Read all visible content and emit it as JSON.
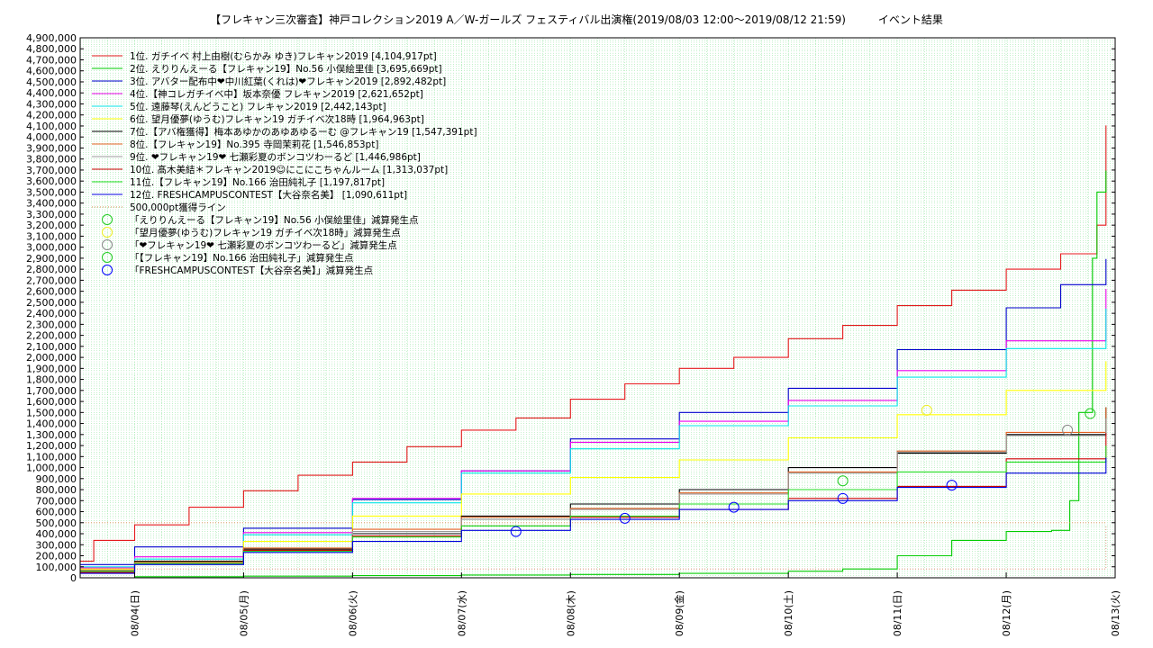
{
  "chart_data": {
    "type": "line",
    "title": "【フレキャン三次審査】神戸コレクション2019 A／W-ガールズ フェスティバル出演権(2019/08/03 12:00〜2019/08/12 21:59)　　　イベント結果",
    "xlabel": "",
    "ylabel": "",
    "x_range": [
      "2019-08-03 12:00",
      "2019-08-13 00:00"
    ],
    "ylim": [
      0,
      4900000
    ],
    "y_ticks": [
      0,
      100000,
      200000,
      300000,
      400000,
      500000,
      600000,
      700000,
      800000,
      900000,
      1000000,
      1100000,
      1200000,
      1300000,
      1400000,
      1500000,
      1600000,
      1700000,
      1800000,
      1900000,
      2000000,
      2100000,
      2200000,
      2300000,
      2400000,
      2500000,
      2600000,
      2700000,
      2800000,
      2900000,
      3000000,
      3100000,
      3200000,
      3300000,
      3400000,
      3500000,
      3600000,
      3700000,
      3800000,
      3900000,
      4000000,
      4100000,
      4200000,
      4300000,
      4400000,
      4500000,
      4600000,
      4700000,
      4800000,
      4900000
    ],
    "y_tick_labels": [
      "0",
      "100,000",
      "200,000",
      "300,000",
      "400,000",
      "500,000",
      "600,000",
      "700,000",
      "800,000",
      "900,000",
      "1,000,000",
      "1,100,000",
      "1,200,000",
      "1,300,000",
      "1,400,000",
      "1,500,000",
      "1,600,000",
      "1,700,000",
      "1,800,000",
      "1,900,000",
      "2,000,000",
      "2,100,000",
      "2,200,000",
      "2,300,000",
      "2,400,000",
      "2,500,000",
      "2,600,000",
      "2,700,000",
      "2,800,000",
      "2,900,000",
      "3,000,000",
      "3,100,000",
      "3,200,000",
      "3,300,000",
      "3,400,000",
      "3,500,000",
      "3,600,000",
      "3,700,000",
      "3,800,000",
      "3,900,000",
      "4,000,000",
      "4,100,000",
      "4,200,000",
      "4,300,000",
      "4,400,000",
      "4,500,000",
      "4,600,000",
      "4,700,000",
      "4,800,000",
      "4,900,000"
    ],
    "x_ticks": [
      {
        "x": "2019-08-04 00:00",
        "label": "08/04(日)"
      },
      {
        "x": "2019-08-05 00:00",
        "label": "08/05(月)"
      },
      {
        "x": "2019-08-06 00:00",
        "label": "08/06(火)"
      },
      {
        "x": "2019-08-07 00:00",
        "label": "08/07(水)"
      },
      {
        "x": "2019-08-08 00:00",
        "label": "08/08(木)"
      },
      {
        "x": "2019-08-09 00:00",
        "label": "08/09(金)"
      },
      {
        "x": "2019-08-10 00:00",
        "label": "08/10(土)"
      },
      {
        "x": "2019-08-11 00:00",
        "label": "08/11(日)"
      },
      {
        "x": "2019-08-12 00:00",
        "label": "08/12(月)"
      },
      {
        "x": "2019-08-13 00:00",
        "label": "08/13(火)"
      }
    ],
    "grid": true,
    "legend_position": "top-left",
    "series": [
      {
        "name": "1位. ガチイベ 村上由樹(むらかみ ゆき)フレキャン2019 [4,104,917pt]",
        "color": "#e41a1c",
        "x": [
          "2019-08-03 12:00",
          "2019-08-03 15:00",
          "2019-08-04 00:00",
          "2019-08-04 12:00",
          "2019-08-05 00:00",
          "2019-08-05 12:00",
          "2019-08-06 00:00",
          "2019-08-06 12:00",
          "2019-08-07 00:00",
          "2019-08-07 12:00",
          "2019-08-08 00:00",
          "2019-08-08 12:00",
          "2019-08-09 00:00",
          "2019-08-09 12:00",
          "2019-08-10 00:00",
          "2019-08-10 12:00",
          "2019-08-11 00:00",
          "2019-08-11 12:00",
          "2019-08-12 00:00",
          "2019-08-12 12:00",
          "2019-08-12 20:00",
          "2019-08-12 21:59"
        ],
        "y": [
          150000,
          340000,
          480000,
          640000,
          790000,
          930000,
          1050000,
          1190000,
          1340000,
          1450000,
          1620000,
          1760000,
          1900000,
          2000000,
          2170000,
          2290000,
          2470000,
          2610000,
          2800000,
          2940000,
          3200000,
          4104917
        ]
      },
      {
        "name": "2位. えりりんえーる【フレキャン19】No.56 小俣絵里佳 [3,695,669pt]",
        "color": "#00cc00",
        "x": [
          "2019-08-03 12:00",
          "2019-08-04 00:00",
          "2019-08-05 00:00",
          "2019-08-06 00:00",
          "2019-08-07 00:00",
          "2019-08-08 00:00",
          "2019-08-09 00:00",
          "2019-08-10 00:00",
          "2019-08-10 12:00",
          "2019-08-11 00:00",
          "2019-08-11 12:00",
          "2019-08-12 00:00",
          "2019-08-12 10:00",
          "2019-08-12 14:00",
          "2019-08-12 16:00",
          "2019-08-12 19:00",
          "2019-08-12 20:00",
          "2019-08-12 21:59"
        ],
        "y": [
          0,
          10000,
          15000,
          20000,
          25000,
          30000,
          40000,
          60000,
          80000,
          200000,
          340000,
          420000,
          430000,
          700000,
          1500000,
          2900000,
          3500000,
          3695669
        ]
      },
      {
        "name": "3位. アバター配布中❤中川紅葉(くれは)❤フレキャン2019 [2,892,482pt]",
        "color": "#0000cc",
        "x": [
          "2019-08-03 12:00",
          "2019-08-04 00:00",
          "2019-08-05 00:00",
          "2019-08-06 00:00",
          "2019-08-07 00:00",
          "2019-08-08 00:00",
          "2019-08-09 00:00",
          "2019-08-10 00:00",
          "2019-08-11 00:00",
          "2019-08-12 00:00",
          "2019-08-12 12:00",
          "2019-08-12 21:59"
        ],
        "y": [
          120000,
          280000,
          450000,
          710000,
          970000,
          1260000,
          1500000,
          1720000,
          2070000,
          2450000,
          2660000,
          2892482
        ]
      },
      {
        "name": "4位.【神コレガチイベ中】坂本奈優 フレキャン2019 [2,621,652pt]",
        "color": "#ee00ee",
        "x": [
          "2019-08-03 12:00",
          "2019-08-04 00:00",
          "2019-08-05 00:00",
          "2019-08-06 00:00",
          "2019-08-07 00:00",
          "2019-08-08 00:00",
          "2019-08-09 00:00",
          "2019-08-10 00:00",
          "2019-08-11 00:00",
          "2019-08-12 00:00",
          "2019-08-12 21:59"
        ],
        "y": [
          90000,
          190000,
          410000,
          720000,
          970000,
          1230000,
          1420000,
          1610000,
          1880000,
          2150000,
          2621652
        ]
      },
      {
        "name": "5位. 遠藤琴(えんどうこと) フレキャン2019 [2,442,143pt]",
        "color": "#00e5e5",
        "x": [
          "2019-08-03 12:00",
          "2019-08-04 00:00",
          "2019-08-05 00:00",
          "2019-08-06 00:00",
          "2019-08-07 00:00",
          "2019-08-08 00:00",
          "2019-08-09 00:00",
          "2019-08-10 00:00",
          "2019-08-11 00:00",
          "2019-08-12 00:00",
          "2019-08-12 21:59"
        ],
        "y": [
          100000,
          170000,
          390000,
          680000,
          950000,
          1170000,
          1380000,
          1560000,
          1820000,
          2080000,
          2442143
        ]
      },
      {
        "name": "6位. 望月優夢(ゆうむ)フレキャン19 ガチイベ次18時 [1,964,963pt]",
        "color": "#ffff00",
        "x": [
          "2019-08-03 12:00",
          "2019-08-04 00:00",
          "2019-08-05 00:00",
          "2019-08-06 00:00",
          "2019-08-07 00:00",
          "2019-08-08 00:00",
          "2019-08-09 00:00",
          "2019-08-10 00:00",
          "2019-08-11 00:00",
          "2019-08-12 00:00",
          "2019-08-12 21:59"
        ],
        "y": [
          80000,
          150000,
          330000,
          560000,
          760000,
          910000,
          1070000,
          1270000,
          1480000,
          1700000,
          1964963
        ]
      },
      {
        "name": "7位.【アバ権獲得】梅本あゆかのあゆあゆるーむ @フレキャン19 [1,547,391pt]",
        "color": "#000000",
        "x": [
          "2019-08-03 12:00",
          "2019-08-04 00:00",
          "2019-08-05 00:00",
          "2019-08-06 00:00",
          "2019-08-07 00:00",
          "2019-08-08 00:00",
          "2019-08-09 00:00",
          "2019-08-10 00:00",
          "2019-08-11 00:00",
          "2019-08-12 00:00",
          "2019-08-12 21:59"
        ],
        "y": [
          60000,
          150000,
          260000,
          400000,
          560000,
          670000,
          800000,
          1000000,
          1130000,
          1300000,
          1547391
        ]
      },
      {
        "name": "8位.【フレキャン19】No.395 寺岡茉莉花 [1,546,853pt]",
        "color": "#e06020",
        "x": [
          "2019-08-03 12:00",
          "2019-08-04 00:00",
          "2019-08-05 00:00",
          "2019-08-06 00:00",
          "2019-08-07 00:00",
          "2019-08-08 00:00",
          "2019-08-09 00:00",
          "2019-08-10 00:00",
          "2019-08-11 00:00",
          "2019-08-12 00:00",
          "2019-08-12 21:59"
        ],
        "y": [
          70000,
          140000,
          270000,
          440000,
          550000,
          630000,
          770000,
          960000,
          1150000,
          1320000,
          1546853
        ]
      },
      {
        "name": "9位. ❤フレキャン19❤ 七瀬彩夏のボンコツわーるど [1,446,986pt]",
        "color": "#999999",
        "x": [
          "2019-08-03 12:00",
          "2019-08-04 00:00",
          "2019-08-05 00:00",
          "2019-08-06 00:00",
          "2019-08-07 00:00",
          "2019-08-08 00:00",
          "2019-08-09 00:00",
          "2019-08-10 00:00",
          "2019-08-11 00:00",
          "2019-08-12 00:00",
          "2019-08-12 21:59"
        ],
        "y": [
          65000,
          130000,
          250000,
          420000,
          530000,
          620000,
          760000,
          950000,
          1140000,
          1290000,
          1446986
        ]
      },
      {
        "name": "10位. 髙木美結＊フレキャン2019☺にこにこちゃんルーム [1,313,037pt]",
        "color": "#cc0000",
        "x": [
          "2019-08-03 12:00",
          "2019-08-04 00:00",
          "2019-08-05 00:00",
          "2019-08-06 00:00",
          "2019-08-07 00:00",
          "2019-08-08 00:00",
          "2019-08-09 00:00",
          "2019-08-10 00:00",
          "2019-08-11 00:00",
          "2019-08-12 00:00",
          "2019-08-12 21:59"
        ],
        "y": [
          50000,
          130000,
          250000,
          380000,
          470000,
          550000,
          620000,
          720000,
          830000,
          1080000,
          1313037
        ]
      },
      {
        "name": "11位.【フレキャン19】No.166 治田純礼子 [1,197,817pt]",
        "color": "#22dd22",
        "x": [
          "2019-08-03 12:00",
          "2019-08-04 00:00",
          "2019-08-05 00:00",
          "2019-08-06 00:00",
          "2019-08-07 00:00",
          "2019-08-08 00:00",
          "2019-08-09 00:00",
          "2019-08-10 00:00",
          "2019-08-11 00:00",
          "2019-08-12 00:00",
          "2019-08-12 21:59"
        ],
        "y": [
          60000,
          130000,
          240000,
          370000,
          470000,
          560000,
          670000,
          800000,
          960000,
          1050000,
          1197817
        ]
      },
      {
        "name": "12位. FRESHCAMPUSCONTEST【大谷奈名美】 [1,090,611pt]",
        "color": "#0000dd",
        "x": [
          "2019-08-03 12:00",
          "2019-08-04 00:00",
          "2019-08-05 00:00",
          "2019-08-06 00:00",
          "2019-08-07 00:00",
          "2019-08-08 00:00",
          "2019-08-09 00:00",
          "2019-08-10 00:00",
          "2019-08-11 00:00",
          "2019-08-12 00:00",
          "2019-08-12 21:59"
        ],
        "y": [
          40000,
          120000,
          230000,
          330000,
          430000,
          530000,
          620000,
          700000,
          820000,
          950000,
          1090611
        ]
      },
      {
        "name": "500,000pt獲得ライン",
        "color": "#cc8844",
        "dash": true,
        "x": [
          "2019-08-03 12:00",
          "2019-08-12 21:59"
        ],
        "y": [
          500000,
          500000
        ]
      }
    ],
    "hidden_trend": {
      "color": "#d08060",
      "x": [
        "2019-08-03 12:00",
        "2019-08-12 21:59"
      ],
      "y": [
        80000,
        480000
      ]
    },
    "markers": [
      {
        "name": "「えりりんえーる【フレキャン19】No.56 小俣絵里佳」減算発生点",
        "color": "#22cc22",
        "points": [
          {
            "x": "2019-08-12 18:30",
            "y": 1490000
          }
        ]
      },
      {
        "name": "「望月優夢(ゆうむ)フレキャン19 ガチイベ次18時」減算発生点",
        "color": "#eeee22",
        "points": [
          {
            "x": "2019-08-11 06:30",
            "y": 1520000
          }
        ]
      },
      {
        "name": "「❤フレキャン19❤ 七瀬彩夏のボンコツわーるど」減算発生点",
        "color": "#888888",
        "points": [
          {
            "x": "2019-08-12 13:30",
            "y": 1340000
          }
        ]
      },
      {
        "name": "「【フレキャン19】No.166 治田純礼子」減算発生点",
        "color": "#22cc22",
        "points": [
          {
            "x": "2019-08-10 12:00",
            "y": 880000
          }
        ]
      },
      {
        "name": "「FRESHCAMPUSCONTEST【大谷奈名美】」減算発生点",
        "color": "#0000ff",
        "points": [
          {
            "x": "2019-08-07 12:00",
            "y": 420000
          },
          {
            "x": "2019-08-08 12:00",
            "y": 540000
          },
          {
            "x": "2019-08-09 12:00",
            "y": 640000
          },
          {
            "x": "2019-08-10 12:00",
            "y": 720000
          },
          {
            "x": "2019-08-11 12:00",
            "y": 840000
          }
        ]
      }
    ]
  }
}
